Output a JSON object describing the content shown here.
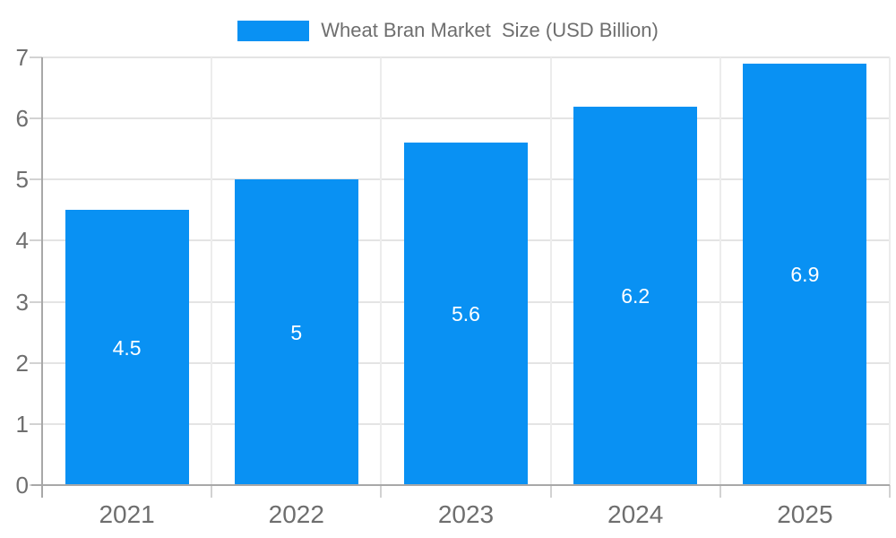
{
  "chart_data": {
    "type": "bar",
    "title": "Wheat Bran Market  Size (USD Billion)",
    "categories": [
      "2021",
      "2022",
      "2023",
      "2024",
      "2025"
    ],
    "values": [
      4.5,
      5,
      5.6,
      6.2,
      6.9
    ],
    "bar_value_labels": [
      "4.5",
      "5",
      "5.6",
      "6.2",
      "6.9"
    ],
    "xlabel": "",
    "ylabel": "",
    "ylim": [
      0,
      7
    ],
    "yticks": [
      0,
      1,
      2,
      3,
      4,
      5,
      6,
      7
    ],
    "ytick_labels": [
      "0",
      "1",
      "2",
      "3",
      "4",
      "5",
      "6",
      "7"
    ],
    "grid": true,
    "legend": {
      "position": "top",
      "entries": [
        {
          "label": "Wheat Bran Market  Size (USD Billion)",
          "color": "#0991f3"
        }
      ]
    },
    "colors": {
      "bar": "#0991f3",
      "bar_label_text": "#ffffff",
      "gridline": "#e4e4e4",
      "category_gridline": "#ececec",
      "axis_line": "#a8a8a8",
      "tick": "#d2d2d2",
      "axis_text": "#6e6e6e",
      "background": "#ffffff"
    }
  }
}
